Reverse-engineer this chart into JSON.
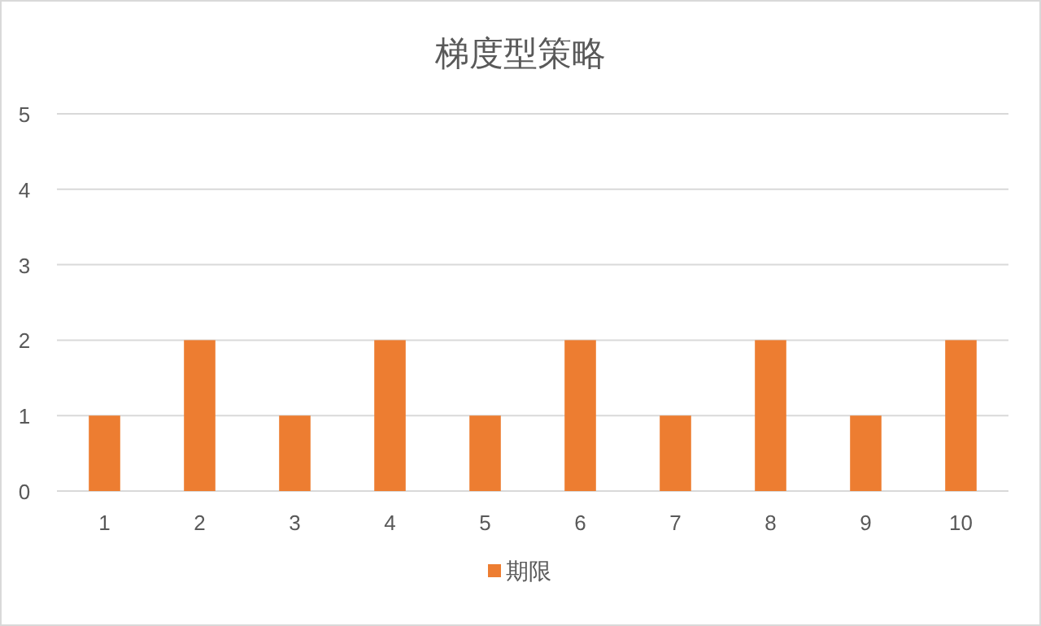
{
  "chart_data": {
    "type": "bar",
    "title": "梯度型策略",
    "categories": [
      "1",
      "2",
      "3",
      "4",
      "5",
      "6",
      "7",
      "8",
      "9",
      "10"
    ],
    "series": [
      {
        "name": "期限",
        "color": "#ed7d31",
        "values": [
          1,
          2,
          1,
          2,
          1,
          2,
          1,
          2,
          1,
          2
        ]
      }
    ],
    "ylim": [
      0,
      5
    ],
    "yticks": [
      0,
      1,
      2,
      3,
      4,
      5
    ],
    "grid": "y",
    "legend": "bottom"
  }
}
